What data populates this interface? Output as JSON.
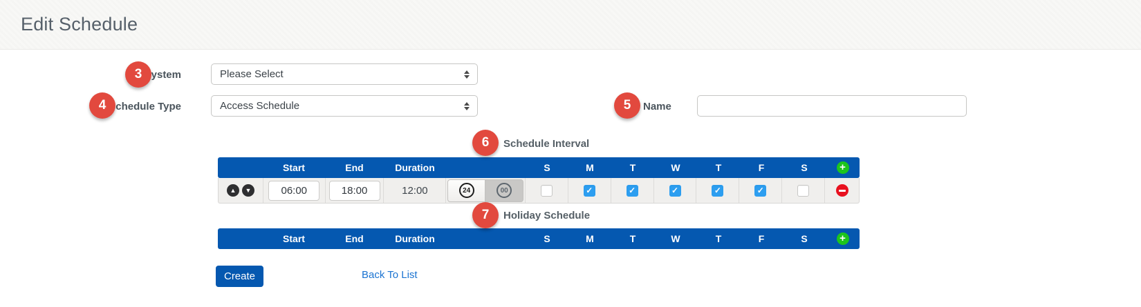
{
  "page": {
    "title": "Edit Schedule"
  },
  "form": {
    "system": {
      "badge": "3",
      "label": "System",
      "value": "Please Select"
    },
    "schedule_type": {
      "badge": "4",
      "label": "Schedule Type",
      "value": "Access Schedule"
    },
    "name": {
      "badge": "5",
      "label": "Name",
      "value": ""
    }
  },
  "interval": {
    "badge": "6",
    "title": "Schedule Interval",
    "columns": {
      "start": "Start",
      "end": "End",
      "duration": "Duration"
    },
    "day_headers": [
      "S",
      "M",
      "T",
      "W",
      "T",
      "F",
      "S"
    ],
    "row": {
      "start": "06:00",
      "end": "18:00",
      "duration": "12:00",
      "hour_button": "24",
      "minute_button": "00",
      "days": [
        {
          "day": "sunday",
          "checked": false
        },
        {
          "day": "monday",
          "checked": true
        },
        {
          "day": "tuesday",
          "checked": true
        },
        {
          "day": "wednesday",
          "checked": true
        },
        {
          "day": "thursday",
          "checked": true
        },
        {
          "day": "friday",
          "checked": true
        },
        {
          "day": "saturday",
          "checked": false
        }
      ]
    }
  },
  "holiday": {
    "badge": "7",
    "title": "Holiday Schedule",
    "columns": {
      "start": "Start",
      "end": "End",
      "duration": "Duration"
    },
    "day_headers": [
      "S",
      "M",
      "T",
      "W",
      "T",
      "F",
      "S"
    ]
  },
  "actions": {
    "create": "Create",
    "back_to_list": "Back To List"
  },
  "colors": {
    "table_header_blue": "#0558b0",
    "badge_red": "#e2493e",
    "checkbox_blue": "#2d9ef0",
    "add_green": "#1dc51d",
    "remove_red": "#e8111f",
    "link_blue": "#1a73d1"
  }
}
